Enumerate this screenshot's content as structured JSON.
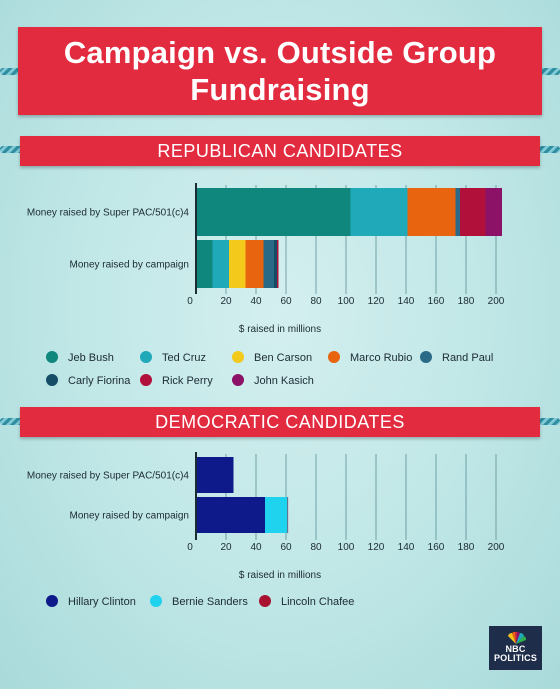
{
  "title": "Campaign vs. Outside Group Fundraising",
  "sections": {
    "republican": {
      "label": "REPUBLICAN CANDIDATES"
    },
    "democratic": {
      "label": "DEMOCRATIC CANDIDATES"
    }
  },
  "logo": {
    "line1": "NBC",
    "line2": "POLITICS"
  },
  "chart_data": [
    {
      "type": "bar",
      "orientation": "horizontal",
      "stacked": true,
      "section": "REPUBLICAN CANDIDATES",
      "categories": [
        "Money raised by Super PAC/501(c)4",
        "Money raised by campaign"
      ],
      "xlabel": "$ raised in millions",
      "xlim": [
        0,
        210
      ],
      "xticks": [
        0,
        20,
        40,
        60,
        80,
        100,
        120,
        140,
        160,
        180,
        200
      ],
      "grid": true,
      "legend_position": "bottom",
      "series": [
        {
          "name": "Jeb Bush",
          "color": "#0f877d",
          "values": [
            103,
            11
          ]
        },
        {
          "name": "Ted Cruz",
          "color": "#1fa9b9",
          "values": [
            38,
            11
          ]
        },
        {
          "name": "Ben Carson",
          "color": "#f3c91c",
          "values": [
            0,
            11
          ]
        },
        {
          "name": "Marco Rubio",
          "color": "#e8640f",
          "values": [
            32,
            12
          ]
        },
        {
          "name": "Rand Paul",
          "color": "#2b6a86",
          "values": [
            3,
            7
          ]
        },
        {
          "name": "Carly Fiorina",
          "color": "#154d67",
          "values": [
            0,
            2
          ]
        },
        {
          "name": "Rick Perry",
          "color": "#b0103a",
          "values": [
            17,
            1
          ]
        },
        {
          "name": "John Kasich",
          "color": "#8c1268",
          "values": [
            11,
            0
          ]
        }
      ]
    },
    {
      "type": "bar",
      "orientation": "horizontal",
      "stacked": true,
      "section": "DEMOCRATIC CANDIDATES",
      "categories": [
        "Money raised by Super PAC/501(c)4",
        "Money raised by campaign"
      ],
      "xlabel": "$ raised in millions",
      "xlim": [
        0,
        210
      ],
      "xticks": [
        0,
        20,
        40,
        60,
        80,
        100,
        120,
        140,
        160,
        180,
        200
      ],
      "grid": true,
      "legend_position": "bottom",
      "series": [
        {
          "name": "Hillary Clinton",
          "color": "#0f1a8a",
          "values": [
            25,
            46
          ]
        },
        {
          "name": "Bernie Sanders",
          "color": "#1fd2ee",
          "values": [
            0,
            15
          ]
        },
        {
          "name": "Lincoln Chafee",
          "color": "#a81230",
          "values": [
            0,
            0.4
          ]
        }
      ]
    }
  ]
}
